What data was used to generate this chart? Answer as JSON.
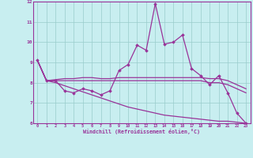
{
  "xlabel": "Windchill (Refroidissement éolien,°C)",
  "xlim": [
    -0.5,
    23.5
  ],
  "ylim": [
    6,
    12
  ],
  "yticks": [
    6,
    7,
    8,
    9,
    10,
    11,
    12
  ],
  "xticks": [
    0,
    1,
    2,
    3,
    4,
    5,
    6,
    7,
    8,
    9,
    10,
    11,
    12,
    13,
    14,
    15,
    16,
    17,
    18,
    19,
    20,
    21,
    22,
    23
  ],
  "background_color": "#c8eef0",
  "grid_color": "#99cccc",
  "line_color": "#993399",
  "line1_x": [
    0,
    1,
    2,
    3,
    4,
    5,
    6,
    7,
    8,
    9,
    10,
    11,
    12,
    13,
    14,
    15,
    16,
    17,
    18,
    19,
    20,
    21,
    22,
    23
  ],
  "line1_y": [
    9.1,
    8.1,
    8.1,
    7.6,
    7.5,
    7.7,
    7.6,
    7.4,
    7.6,
    8.6,
    8.9,
    9.85,
    9.6,
    11.9,
    9.9,
    10.0,
    10.35,
    8.7,
    8.35,
    7.9,
    8.35,
    7.5,
    6.5,
    6.0
  ],
  "line2_x": [
    0,
    1,
    2,
    3,
    4,
    5,
    6,
    7,
    8,
    9,
    10,
    11,
    12,
    13,
    14,
    15,
    16,
    17,
    18,
    19,
    20,
    21,
    22,
    23
  ],
  "line2_y": [
    9.1,
    8.1,
    8.15,
    8.2,
    8.2,
    8.25,
    8.25,
    8.2,
    8.2,
    8.25,
    8.25,
    8.25,
    8.25,
    8.25,
    8.25,
    8.25,
    8.25,
    8.25,
    8.25,
    8.2,
    8.2,
    8.1,
    7.9,
    7.7
  ],
  "line3_x": [
    0,
    1,
    2,
    3,
    4,
    5,
    6,
    7,
    8,
    9,
    10,
    11,
    12,
    13,
    14,
    15,
    16,
    17,
    18,
    19,
    20,
    21,
    22,
    23
  ],
  "line3_y": [
    9.1,
    8.1,
    8.1,
    8.1,
    8.1,
    8.1,
    8.1,
    8.1,
    8.1,
    8.1,
    8.1,
    8.1,
    8.1,
    8.1,
    8.1,
    8.1,
    8.1,
    8.1,
    8.1,
    8.0,
    8.0,
    7.9,
    7.7,
    7.5
  ],
  "line4_x": [
    0,
    1,
    2,
    3,
    4,
    5,
    6,
    7,
    8,
    9,
    10,
    11,
    12,
    13,
    14,
    15,
    16,
    17,
    18,
    19,
    20,
    21,
    22,
    23
  ],
  "line4_y": [
    9.1,
    8.1,
    8.0,
    7.85,
    7.7,
    7.55,
    7.4,
    7.25,
    7.1,
    6.95,
    6.8,
    6.7,
    6.6,
    6.5,
    6.4,
    6.35,
    6.3,
    6.25,
    6.2,
    6.15,
    6.1,
    6.1,
    6.05,
    6.0
  ]
}
